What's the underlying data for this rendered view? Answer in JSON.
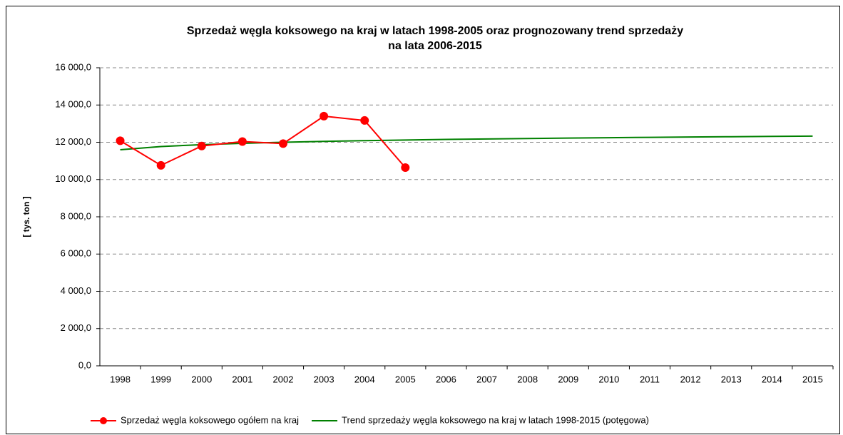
{
  "chart_data": {
    "type": "line",
    "title": [
      "Sprzedaż węgla koksowego na kraj w latach 1998-2005 oraz prognozowany trend sprzedaży",
      "na lata 2006-2015"
    ],
    "y_label": "[ tys. ton ]",
    "categories": [
      "1998",
      "1999",
      "2000",
      "2001",
      "2002",
      "2003",
      "2004",
      "2005",
      "2006",
      "2007",
      "2008",
      "2009",
      "2010",
      "2011",
      "2012",
      "2013",
      "2014",
      "2015"
    ],
    "series": [
      {
        "name": "Sprzedaż węgla koksowego ogółem na kraj",
        "color": "#ff0000",
        "marker": true,
        "values": [
          12080,
          10760,
          11800,
          12040,
          11930,
          13400,
          13170,
          10640,
          null,
          null,
          null,
          null,
          null,
          null,
          null,
          null,
          null,
          null
        ]
      },
      {
        "name": "Trend sprzedaży węgla koksowego na kraj w latach 1998-2015 (potęgowa)",
        "color": "#008000",
        "marker": false,
        "values": [
          11600,
          11771,
          11872,
          11944,
          12000,
          12047,
          12086,
          12121,
          12151,
          12178,
          12202,
          12224,
          12245,
          12265,
          12282,
          12299,
          12315,
          12328
        ]
      }
    ],
    "ylim": [
      0,
      16000
    ],
    "yticks": [
      {
        "value": 0,
        "label": "0,0"
      },
      {
        "value": 2000,
        "label": "2 000,0"
      },
      {
        "value": 4000,
        "label": "4 000,0"
      },
      {
        "value": 6000,
        "label": "6 000,0"
      },
      {
        "value": 8000,
        "label": "8 000,0"
      },
      {
        "value": 10000,
        "label": "10 000,0"
      },
      {
        "value": 12000,
        "label": "12 000,0"
      },
      {
        "value": 14000,
        "label": "14 000,0"
      },
      {
        "value": 16000,
        "label": "16 000,0"
      }
    ],
    "grid": true,
    "legend": "bottom"
  }
}
